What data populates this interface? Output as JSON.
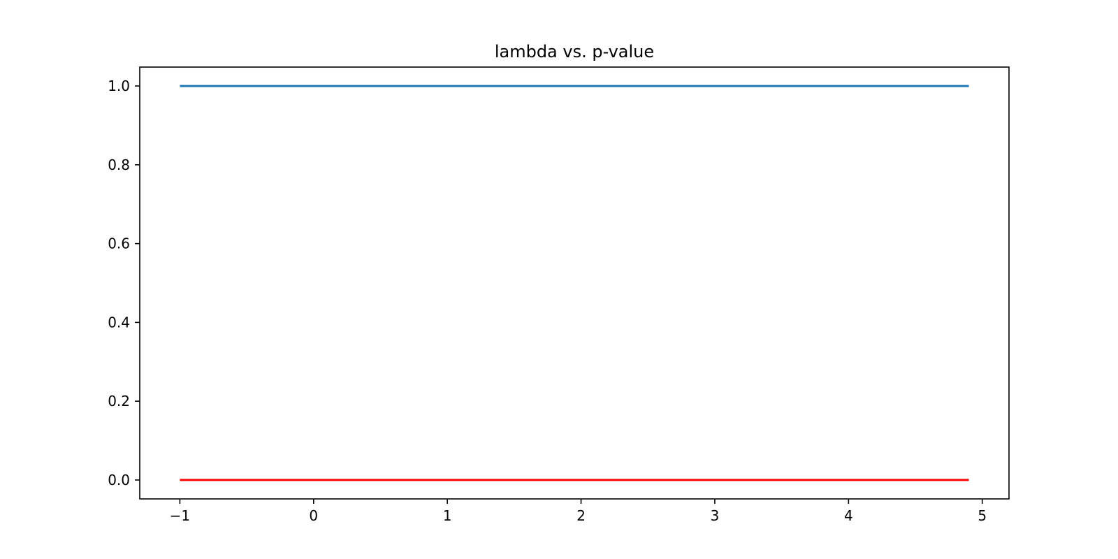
{
  "chart_data": {
    "type": "line",
    "title": "lambda vs. p-value",
    "xlabel": "",
    "ylabel": "",
    "xlim": [
      -1.3,
      5.2
    ],
    "ylim": [
      -0.048,
      1.048
    ],
    "x_ticks": [
      -1,
      0,
      1,
      2,
      3,
      4,
      5
    ],
    "x_tick_labels": [
      "−1",
      "0",
      "1",
      "2",
      "3",
      "4",
      "5"
    ],
    "y_ticks": [
      0.0,
      0.2,
      0.4,
      0.6,
      0.8,
      1.0
    ],
    "y_tick_labels": [
      "0.0",
      "0.2",
      "0.4",
      "0.6",
      "0.8",
      "1.0"
    ],
    "grid": false,
    "legend": "none",
    "series": [
      {
        "color": "#1f77b4",
        "x": [
          -1.0,
          4.9
        ],
        "y": [
          1.0,
          1.0
        ]
      },
      {
        "color": "#ff0000",
        "x": [
          -1.0,
          4.9
        ],
        "y": [
          0.0,
          0.0
        ]
      }
    ]
  }
}
